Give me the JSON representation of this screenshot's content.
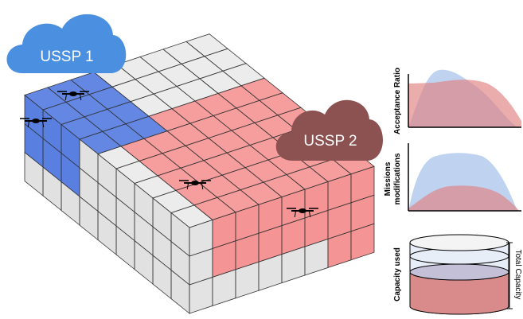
{
  "clouds": [
    {
      "label": "USSP 1"
    },
    {
      "label": "USSP 2"
    }
  ],
  "panels": [
    {
      "lines": [
        "Acceptance Ratio"
      ]
    },
    {
      "lines": [
        "Missions",
        "modifications"
      ]
    },
    {
      "lines": [
        "Capacity used"
      ]
    }
  ],
  "capacity_label": "Total Capacity"
}
